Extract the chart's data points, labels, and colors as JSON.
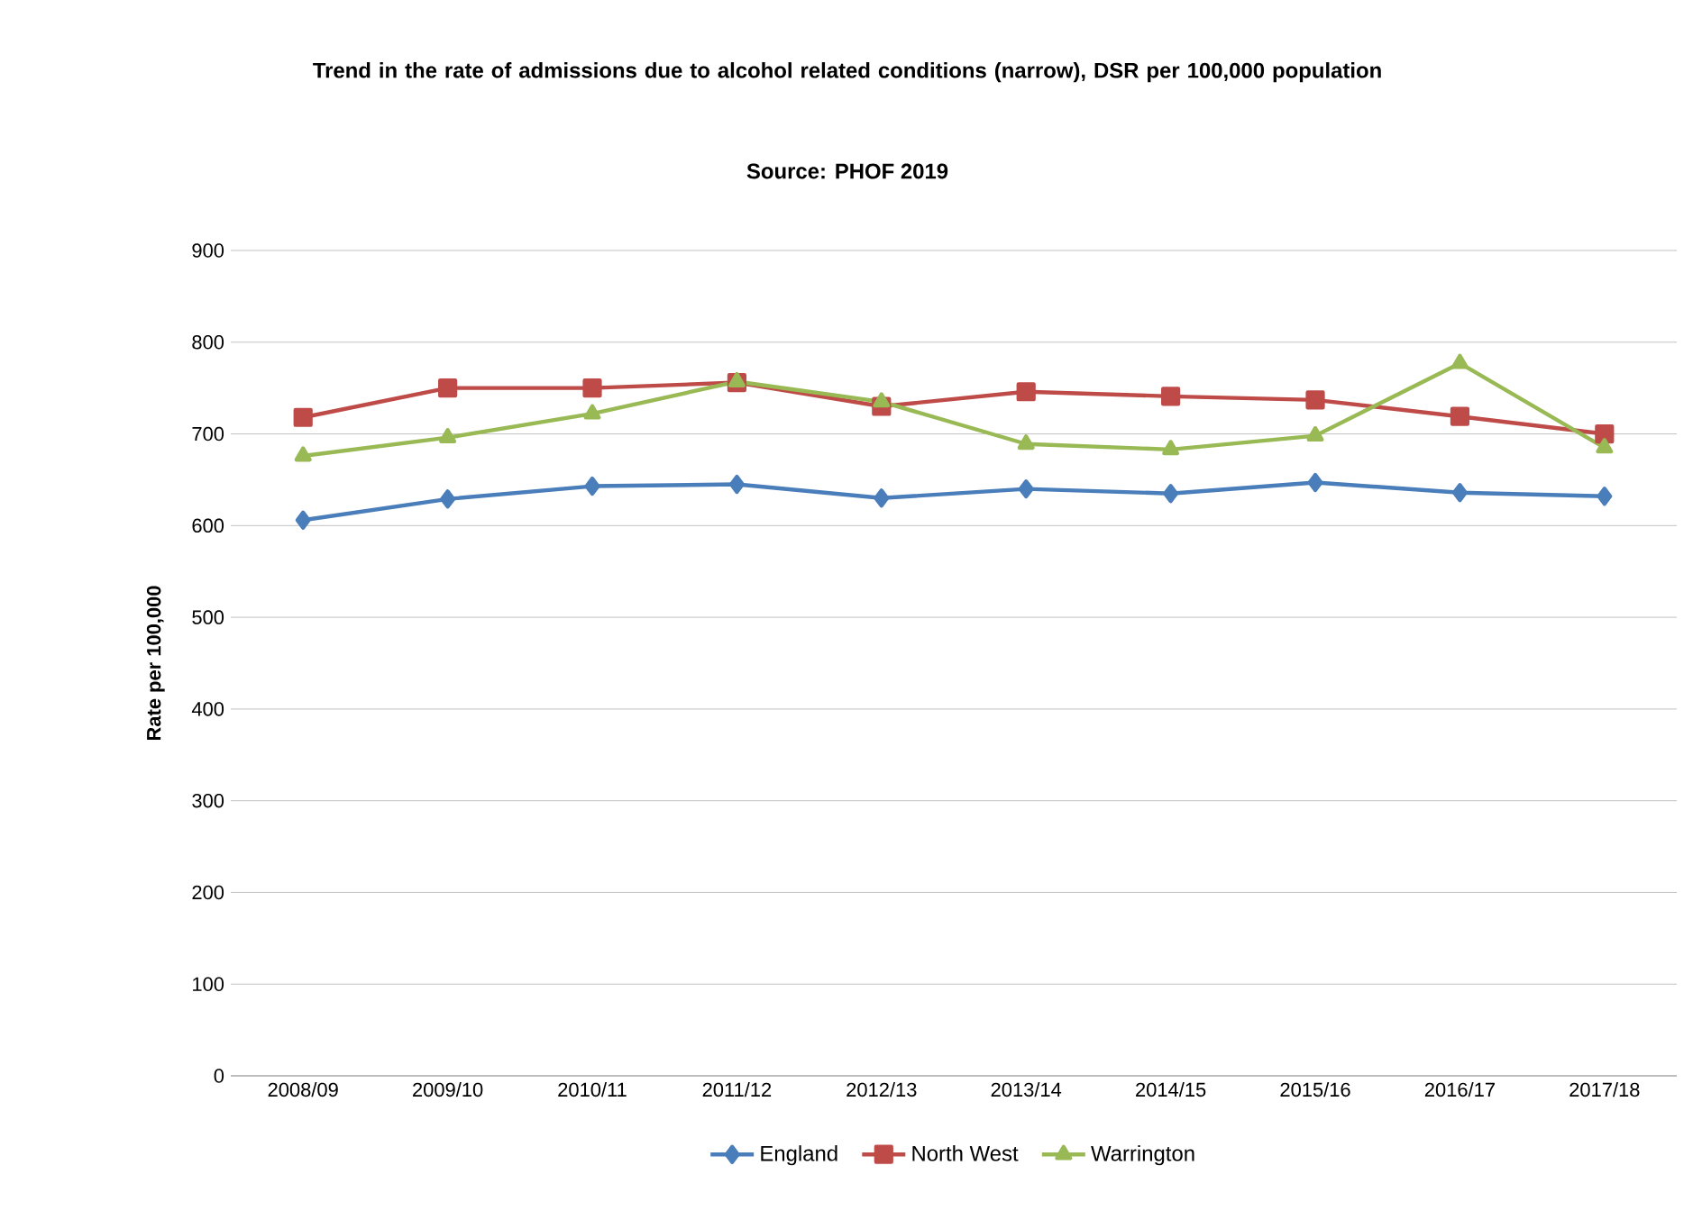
{
  "chart_data": {
    "type": "line",
    "title": "Trend in the rate of admissions due to alcohol related conditions (narrow), DSR per 100,000 population",
    "subtitle": "Source: PHOF 2019",
    "ylabel": "Rate per 100,000",
    "categories": [
      "2008/09",
      "2009/10",
      "2010/11",
      "2011/12",
      "2012/13",
      "2013/14",
      "2014/15",
      "2015/16",
      "2016/17",
      "2017/18"
    ],
    "series": [
      {
        "name": "England",
        "color": "#4a7ebb",
        "marker": "diamond",
        "values": [
          606,
          629,
          643,
          645,
          630,
          640,
          635,
          647,
          636,
          632
        ]
      },
      {
        "name": "North West",
        "color": "#be4b48",
        "marker": "square",
        "values": [
          718,
          750,
          750,
          756,
          730,
          746,
          741,
          737,
          719,
          700
        ]
      },
      {
        "name": "Warrington",
        "color": "#98b954",
        "marker": "triangle",
        "values": [
          676,
          696,
          722,
          757,
          735,
          689,
          683,
          698,
          777,
          685
        ]
      }
    ],
    "ylim": [
      0,
      900
    ],
    "yticks": [
      0,
      100,
      200,
      300,
      400,
      500,
      600,
      700,
      800,
      900
    ],
    "grid": "y",
    "legend": "bottom",
    "line_style": "solid"
  }
}
